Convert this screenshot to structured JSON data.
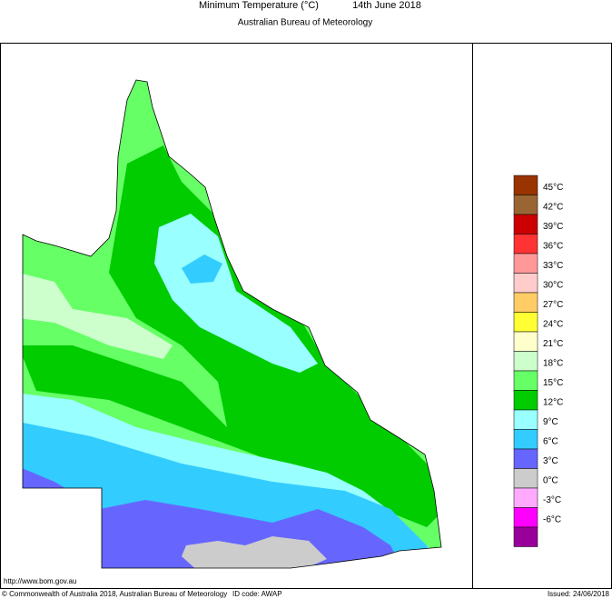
{
  "header": {
    "title": "Minimum Temperature (°C)",
    "date": "14th June 2018",
    "subtitle": "Australian Bureau of Meteorology"
  },
  "legend": {
    "colors": [
      "#993300",
      "#996633",
      "#cc0000",
      "#ff3333",
      "#ff9999",
      "#ffcccc",
      "#ffcc66",
      "#ffff33",
      "#ffffcc",
      "#ccffcc",
      "#66ff66",
      "#00cc00",
      "#99ffff",
      "#33ccff",
      "#6666ff",
      "#cccccc",
      "#ffaaff",
      "#ff00ff",
      "#990099"
    ],
    "labels": [
      "45°C",
      "42°C",
      "39°C",
      "36°C",
      "33°C",
      "30°C",
      "27°C",
      "24°C",
      "21°C",
      "18°C",
      "15°C",
      "12°C",
      "9°C",
      "6°C",
      "3°C",
      "0°C",
      "-3°C",
      "-6°C"
    ]
  },
  "footer": {
    "url": "http://www.bom.gov.au",
    "copyright": "© Commonwealth of Australia 2018, Australian Bureau of Meteorology",
    "id_code": "ID code: AWAP",
    "issued": "Issued: 24/06/2018"
  }
}
